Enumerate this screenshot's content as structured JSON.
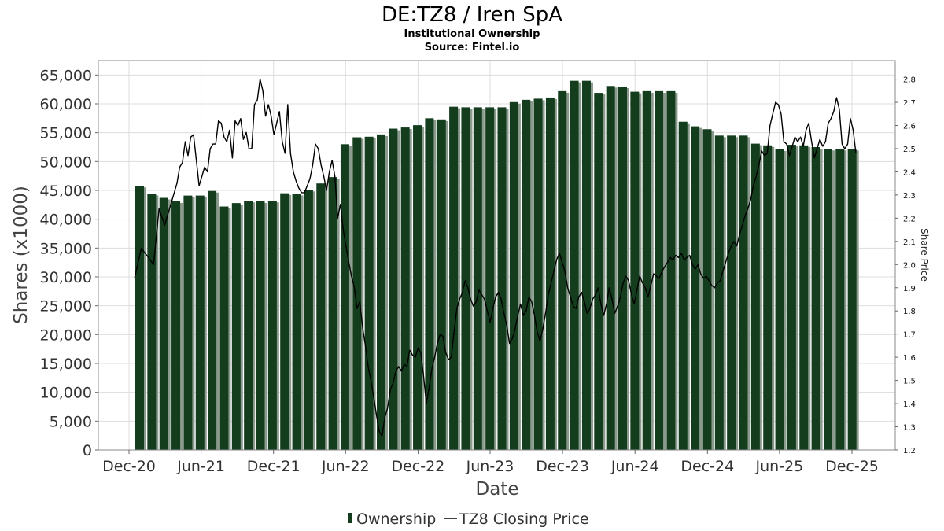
{
  "chart_data": {
    "type": "bar",
    "title": "DE:TZ8 / Iren SpA",
    "subtitle": "Institutional Ownership",
    "source": "Source: Fintel.io",
    "xlabel": "Date",
    "ylabel": "Shares (x1000)",
    "y2label": "Share Price",
    "ylim": [
      0,
      67500
    ],
    "y2lim": [
      1.2,
      2.88
    ],
    "yticks": [
      "0",
      "5,000",
      "10,000",
      "15,000",
      "20,000",
      "25,000",
      "30,000",
      "35,000",
      "40,000",
      "45,000",
      "50,000",
      "55,000",
      "60,000",
      "65,000"
    ],
    "y2ticks": [
      "1.2",
      "1.3",
      "1.4",
      "1.5",
      "1.6",
      "1.7",
      "1.8",
      "1.9",
      "2.0",
      "2.1",
      "2.2",
      "2.3",
      "2.4",
      "2.5",
      "2.6",
      "2.7",
      "2.8"
    ],
    "xticks": [
      "Dec-20",
      "Jun-21",
      "Dec-21",
      "Jun-22",
      "Dec-22",
      "Jun-23",
      "Dec-23",
      "Jun-24",
      "Dec-24",
      "Jun-25",
      "Dec-25"
    ],
    "legend": [
      "Ownership",
      "TZ8 Closing Price"
    ],
    "legend_position": "bottom",
    "colors": {
      "bar": "#143d1e",
      "bar_shadow": "#8a9a8c",
      "price_line": "#000000",
      "grid": "#dddddd"
    },
    "series": [
      {
        "name": "Ownership",
        "values": [
          45800,
          44400,
          43700,
          43100,
          44100,
          44100,
          44900,
          42200,
          42800,
          43200,
          43100,
          43200,
          44500,
          44400,
          45100,
          46200,
          47300,
          53000,
          54200,
          54300,
          54700,
          55700,
          55900,
          56300,
          57500,
          57300,
          59500,
          59400,
          59400,
          59400,
          59400,
          60300,
          60700,
          60900,
          61100,
          62200,
          64000,
          64000,
          61900,
          63100,
          63000,
          62100,
          62200,
          62200,
          62200,
          56900,
          56100,
          55600,
          54500,
          54500,
          54500,
          53100,
          52800,
          52100,
          52900,
          52800,
          52500,
          52200,
          52200,
          52200
        ]
      },
      {
        "name": "TZ8 Closing Price",
        "points": [
          [
            "2020-12-15",
            1.94
          ],
          [
            "2021-01-01",
            2.07
          ],
          [
            "2021-01-15",
            2.04
          ],
          [
            "2021-02-01",
            2.0
          ],
          [
            "2021-02-15",
            2.24
          ],
          [
            "2021-03-01",
            2.17
          ],
          [
            "2021-03-15",
            2.25
          ],
          [
            "2021-04-01",
            2.35
          ],
          [
            "2021-04-08",
            2.42
          ],
          [
            "2021-04-15",
            2.44
          ],
          [
            "2021-04-22",
            2.53
          ],
          [
            "2021-04-29",
            2.47
          ],
          [
            "2021-05-06",
            2.55
          ],
          [
            "2021-05-13",
            2.56
          ],
          [
            "2021-05-20",
            2.45
          ],
          [
            "2021-05-27",
            2.34
          ],
          [
            "2021-06-03",
            2.38
          ],
          [
            "2021-06-10",
            2.42
          ],
          [
            "2021-06-17",
            2.4
          ],
          [
            "2021-06-24",
            2.5
          ],
          [
            "2021-07-01",
            2.52
          ],
          [
            "2021-07-08",
            2.52
          ],
          [
            "2021-07-15",
            2.62
          ],
          [
            "2021-07-22",
            2.61
          ],
          [
            "2021-07-29",
            2.55
          ],
          [
            "2021-08-05",
            2.53
          ],
          [
            "2021-08-12",
            2.58
          ],
          [
            "2021-08-19",
            2.46
          ],
          [
            "2021-08-26",
            2.62
          ],
          [
            "2021-09-02",
            2.6
          ],
          [
            "2021-09-09",
            2.63
          ],
          [
            "2021-09-16",
            2.54
          ],
          [
            "2021-09-23",
            2.57
          ],
          [
            "2021-09-30",
            2.5
          ],
          [
            "2021-10-07",
            2.5
          ],
          [
            "2021-10-14",
            2.69
          ],
          [
            "2021-10-21",
            2.71
          ],
          [
            "2021-10-28",
            2.8
          ],
          [
            "2021-11-04",
            2.75
          ],
          [
            "2021-11-11",
            2.64
          ],
          [
            "2021-11-18",
            2.69
          ],
          [
            "2021-11-25",
            2.64
          ],
          [
            "2021-12-02",
            2.56
          ],
          [
            "2021-12-09",
            2.61
          ],
          [
            "2021-12-16",
            2.66
          ],
          [
            "2021-12-23",
            2.53
          ],
          [
            "2021-12-30",
            2.48
          ],
          [
            "2022-01-06",
            2.69
          ],
          [
            "2022-01-13",
            2.48
          ],
          [
            "2022-01-20",
            2.4
          ],
          [
            "2022-01-27",
            2.36
          ],
          [
            "2022-02-03",
            2.33
          ],
          [
            "2022-02-10",
            2.31
          ],
          [
            "2022-02-17",
            2.31
          ],
          [
            "2022-02-24",
            2.34
          ],
          [
            "2022-03-03",
            2.37
          ],
          [
            "2022-03-10",
            2.43
          ],
          [
            "2022-03-17",
            2.52
          ],
          [
            "2022-03-24",
            2.5
          ],
          [
            "2022-03-31",
            2.43
          ],
          [
            "2022-04-07",
            2.38
          ],
          [
            "2022-04-14",
            2.32
          ],
          [
            "2022-04-21",
            2.4
          ],
          [
            "2022-04-28",
            2.45
          ],
          [
            "2022-05-05",
            2.38
          ],
          [
            "2022-05-12",
            2.2
          ],
          [
            "2022-05-19",
            2.26
          ],
          [
            "2022-05-26",
            2.15
          ],
          [
            "2022-06-02",
            2.08
          ],
          [
            "2022-06-09",
            2.01
          ],
          [
            "2022-06-16",
            1.95
          ],
          [
            "2022-06-23",
            1.9
          ],
          [
            "2022-06-30",
            1.81
          ],
          [
            "2022-07-07",
            1.84
          ],
          [
            "2022-07-14",
            1.73
          ],
          [
            "2022-07-21",
            1.65
          ],
          [
            "2022-07-28",
            1.56
          ],
          [
            "2022-08-04",
            1.5
          ],
          [
            "2022-08-11",
            1.43
          ],
          [
            "2022-08-18",
            1.35
          ],
          [
            "2022-08-25",
            1.28
          ],
          [
            "2022-09-01",
            1.26
          ],
          [
            "2022-09-08",
            1.34
          ],
          [
            "2022-09-15",
            1.38
          ],
          [
            "2022-09-22",
            1.46
          ],
          [
            "2022-09-29",
            1.49
          ],
          [
            "2022-10-06",
            1.54
          ],
          [
            "2022-10-13",
            1.56
          ],
          [
            "2022-10-20",
            1.54
          ],
          [
            "2022-10-27",
            1.57
          ],
          [
            "2022-11-03",
            1.56
          ],
          [
            "2022-11-10",
            1.63
          ],
          [
            "2022-11-17",
            1.61
          ],
          [
            "2022-11-24",
            1.6
          ],
          [
            "2022-12-01",
            1.64
          ],
          [
            "2022-12-08",
            1.62
          ],
          [
            "2022-12-15",
            1.52
          ],
          [
            "2022-12-22",
            1.4
          ],
          [
            "2022-12-29",
            1.47
          ],
          [
            "2023-01-05",
            1.55
          ],
          [
            "2023-01-12",
            1.6
          ],
          [
            "2023-01-19",
            1.66
          ],
          [
            "2023-01-26",
            1.7
          ],
          [
            "2023-02-02",
            1.69
          ],
          [
            "2023-02-09",
            1.62
          ],
          [
            "2023-02-16",
            1.59
          ],
          [
            "2023-02-23",
            1.6
          ],
          [
            "2023-03-02",
            1.71
          ],
          [
            "2023-03-09",
            1.81
          ],
          [
            "2023-03-16",
            1.85
          ],
          [
            "2023-03-23",
            1.88
          ],
          [
            "2023-03-30",
            1.93
          ],
          [
            "2023-04-06",
            1.9
          ],
          [
            "2023-04-13",
            1.85
          ],
          [
            "2023-04-20",
            1.82
          ],
          [
            "2023-04-27",
            1.84
          ],
          [
            "2023-05-04",
            1.89
          ],
          [
            "2023-05-11",
            1.87
          ],
          [
            "2023-05-18",
            1.85
          ],
          [
            "2023-05-25",
            1.8
          ],
          [
            "2023-06-01",
            1.75
          ],
          [
            "2023-06-08",
            1.81
          ],
          [
            "2023-06-15",
            1.86
          ],
          [
            "2023-06-22",
            1.88
          ],
          [
            "2023-06-29",
            1.85
          ],
          [
            "2023-07-06",
            1.79
          ],
          [
            "2023-07-13",
            1.74
          ],
          [
            "2023-07-20",
            1.66
          ],
          [
            "2023-07-27",
            1.68
          ],
          [
            "2023-08-03",
            1.72
          ],
          [
            "2023-08-10",
            1.78
          ],
          [
            "2023-08-17",
            1.83
          ],
          [
            "2023-08-24",
            1.78
          ],
          [
            "2023-08-31",
            1.8
          ],
          [
            "2023-09-07",
            1.86
          ],
          [
            "2023-09-14",
            1.84
          ],
          [
            "2023-09-21",
            1.78
          ],
          [
            "2023-09-28",
            1.71
          ],
          [
            "2023-10-05",
            1.67
          ],
          [
            "2023-10-12",
            1.72
          ],
          [
            "2023-10-19",
            1.79
          ],
          [
            "2023-10-26",
            1.87
          ],
          [
            "2023-11-02",
            1.92
          ],
          [
            "2023-11-09",
            1.97
          ],
          [
            "2023-11-16",
            2.02
          ],
          [
            "2023-11-23",
            2.05
          ],
          [
            "2023-11-30",
            2.01
          ],
          [
            "2023-12-07",
            1.97
          ],
          [
            "2023-12-14",
            1.9
          ],
          [
            "2023-12-21",
            1.86
          ],
          [
            "2023-12-28",
            1.82
          ],
          [
            "2024-01-04",
            1.81
          ],
          [
            "2024-01-11",
            1.86
          ],
          [
            "2024-01-18",
            1.88
          ],
          [
            "2024-01-25",
            1.84
          ],
          [
            "2024-02-01",
            1.79
          ],
          [
            "2024-02-08",
            1.81
          ],
          [
            "2024-02-15",
            1.85
          ],
          [
            "2024-02-22",
            1.87
          ],
          [
            "2024-02-29",
            1.9
          ],
          [
            "2024-03-07",
            1.83
          ],
          [
            "2024-03-14",
            1.78
          ],
          [
            "2024-03-21",
            1.83
          ],
          [
            "2024-03-28",
            1.9
          ],
          [
            "2024-04-04",
            1.85
          ],
          [
            "2024-04-11",
            1.79
          ],
          [
            "2024-04-18",
            1.82
          ],
          [
            "2024-04-25",
            1.86
          ],
          [
            "2024-05-02",
            1.92
          ],
          [
            "2024-05-09",
            1.95
          ],
          [
            "2024-05-16",
            1.93
          ],
          [
            "2024-05-23",
            1.87
          ],
          [
            "2024-05-30",
            1.83
          ],
          [
            "2024-06-06",
            1.89
          ],
          [
            "2024-06-13",
            1.95
          ],
          [
            "2024-06-20",
            1.92
          ],
          [
            "2024-06-27",
            1.9
          ],
          [
            "2024-07-04",
            1.86
          ],
          [
            "2024-07-11",
            1.91
          ],
          [
            "2024-07-18",
            1.96
          ],
          [
            "2024-07-25",
            1.95
          ],
          [
            "2024-08-01",
            1.94
          ],
          [
            "2024-08-08",
            1.97
          ],
          [
            "2024-08-15",
            1.99
          ],
          [
            "2024-08-22",
            2.01
          ],
          [
            "2024-08-29",
            2.03
          ],
          [
            "2024-09-05",
            2.02
          ],
          [
            "2024-09-12",
            2.04
          ],
          [
            "2024-09-19",
            2.03
          ],
          [
            "2024-09-26",
            2.05
          ],
          [
            "2024-10-03",
            2.02
          ],
          [
            "2024-10-10",
            2.03
          ],
          [
            "2024-10-17",
            2.04
          ],
          [
            "2024-10-24",
            2.0
          ],
          [
            "2024-10-31",
            1.98
          ],
          [
            "2024-11-07",
            2.0
          ],
          [
            "2024-11-14",
            1.96
          ],
          [
            "2024-11-21",
            1.94
          ],
          [
            "2024-11-28",
            1.95
          ],
          [
            "2024-12-05",
            1.93
          ],
          [
            "2024-12-12",
            1.91
          ],
          [
            "2024-12-19",
            1.9
          ],
          [
            "2024-12-26",
            1.92
          ],
          [
            "2025-01-02",
            1.93
          ],
          [
            "2025-01-09",
            1.97
          ],
          [
            "2025-01-16",
            2.01
          ],
          [
            "2025-01-23",
            2.05
          ],
          [
            "2025-01-30",
            2.08
          ],
          [
            "2025-02-06",
            2.1
          ],
          [
            "2025-02-13",
            2.08
          ],
          [
            "2025-02-20",
            2.13
          ],
          [
            "2025-02-27",
            2.17
          ],
          [
            "2025-03-06",
            2.21
          ],
          [
            "2025-03-13",
            2.24
          ],
          [
            "2025-03-20",
            2.28
          ],
          [
            "2025-03-27",
            2.34
          ],
          [
            "2025-04-03",
            2.38
          ],
          [
            "2025-04-10",
            2.43
          ],
          [
            "2025-04-17",
            2.49
          ],
          [
            "2025-04-24",
            2.47
          ],
          [
            "2025-05-01",
            2.48
          ],
          [
            "2025-05-08",
            2.6
          ],
          [
            "2025-05-15",
            2.65
          ],
          [
            "2025-05-22",
            2.7
          ],
          [
            "2025-05-29",
            2.69
          ],
          [
            "2025-06-05",
            2.65
          ],
          [
            "2025-06-12",
            2.53
          ],
          [
            "2025-06-19",
            2.52
          ],
          [
            "2025-06-26",
            2.47
          ],
          [
            "2025-07-03",
            2.51
          ],
          [
            "2025-07-10",
            2.55
          ],
          [
            "2025-07-17",
            2.53
          ],
          [
            "2025-07-24",
            2.55
          ],
          [
            "2025-07-31",
            2.51
          ],
          [
            "2025-08-07",
            2.58
          ],
          [
            "2025-08-14",
            2.61
          ],
          [
            "2025-08-21",
            2.53
          ],
          [
            "2025-08-28",
            2.46
          ],
          [
            "2025-09-04",
            2.5
          ],
          [
            "2025-09-11",
            2.54
          ],
          [
            "2025-09-18",
            2.51
          ],
          [
            "2025-09-25",
            2.53
          ],
          [
            "2025-10-02",
            2.61
          ],
          [
            "2025-10-09",
            2.63
          ],
          [
            "2025-10-16",
            2.66
          ],
          [
            "2025-10-23",
            2.72
          ],
          [
            "2025-10-30",
            2.67
          ],
          [
            "2025-11-06",
            2.52
          ],
          [
            "2025-11-13",
            2.5
          ],
          [
            "2025-11-20",
            2.52
          ],
          [
            "2025-11-27",
            2.63
          ],
          [
            "2025-12-04",
            2.58
          ],
          [
            "2025-12-11",
            2.48
          ]
        ]
      }
    ]
  }
}
